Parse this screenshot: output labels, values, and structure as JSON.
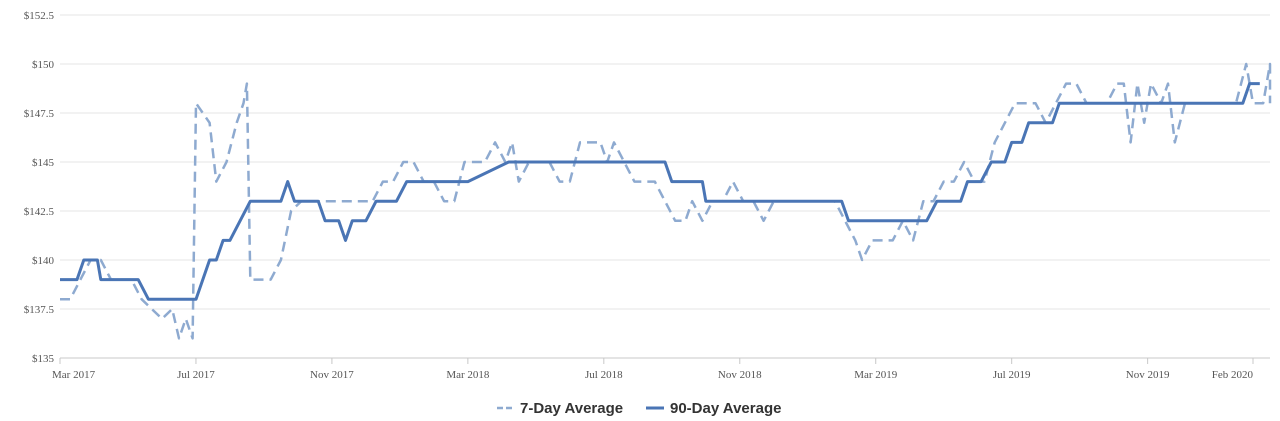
{
  "chart_data": {
    "type": "line",
    "title": "",
    "xlabel": "",
    "ylabel": "",
    "ylim": [
      135,
      152.5
    ],
    "y_ticks": [
      135,
      137.5,
      140,
      142.5,
      145,
      147.5,
      150,
      152.5
    ],
    "y_tick_labels": [
      "$135",
      "$137.5",
      "$140",
      "$142.5",
      "$145",
      "$147.5",
      "$150",
      "$152.5"
    ],
    "x_range": [
      0,
      35.6
    ],
    "x_unit": "months since Mar 2017",
    "x_ticks": [
      {
        "label": "Mar 2017",
        "x": 0
      },
      {
        "label": "Jul 2017",
        "x": 4
      },
      {
        "label": "Nov 2017",
        "x": 8
      },
      {
        "label": "Mar 2018",
        "x": 12
      },
      {
        "label": "Jul 2018",
        "x": 16
      },
      {
        "label": "Nov 2018",
        "x": 20
      },
      {
        "label": "Mar 2019",
        "x": 24
      },
      {
        "label": "Jul 2019",
        "x": 28
      },
      {
        "label": "Nov 2019",
        "x": 32
      },
      {
        "label": "Feb 2020",
        "x": 35.1
      }
    ],
    "legend_position": "bottom-center",
    "series": [
      {
        "name": "7-Day Average",
        "key": "seven_day",
        "color": "#8eaad0",
        "dash": "dashed",
        "points": [
          [
            0,
            138
          ],
          [
            0.3,
            138
          ],
          [
            0.6,
            139
          ],
          [
            0.9,
            140
          ],
          [
            1.2,
            140
          ],
          [
            1.5,
            139
          ],
          [
            1.8,
            139
          ],
          [
            2.1,
            139
          ],
          [
            2.4,
            138
          ],
          [
            2.7,
            137.5
          ],
          [
            3,
            137
          ],
          [
            3.3,
            137.5
          ],
          [
            3.5,
            136
          ],
          [
            3.7,
            137
          ],
          [
            3.9,
            136
          ],
          [
            4.0,
            148
          ],
          [
            4.2,
            147.5
          ],
          [
            4.4,
            147
          ],
          [
            4.6,
            144
          ],
          [
            4.9,
            145
          ],
          [
            5.2,
            147
          ],
          [
            5.4,
            148
          ],
          [
            5.5,
            149
          ],
          [
            5.6,
            139
          ],
          [
            5.9,
            139
          ],
          [
            6.2,
            139
          ],
          [
            6.5,
            140
          ],
          [
            6.8,
            142.5
          ],
          [
            7.1,
            143
          ],
          [
            7.4,
            143
          ],
          [
            7.7,
            143
          ],
          [
            8,
            143
          ],
          [
            8.3,
            143
          ],
          [
            8.6,
            143
          ],
          [
            8.9,
            143
          ],
          [
            9.2,
            143
          ],
          [
            9.5,
            144
          ],
          [
            9.8,
            144
          ],
          [
            10.1,
            145
          ],
          [
            10.4,
            145
          ],
          [
            10.7,
            144
          ],
          [
            11,
            144
          ],
          [
            11.3,
            143
          ],
          [
            11.6,
            143
          ],
          [
            11.9,
            145
          ],
          [
            12.2,
            145
          ],
          [
            12.5,
            145
          ],
          [
            12.8,
            146
          ],
          [
            13.1,
            145
          ],
          [
            13.3,
            146
          ],
          [
            13.5,
            144
          ],
          [
            13.8,
            145
          ],
          [
            14.1,
            145
          ],
          [
            14.4,
            145
          ],
          [
            14.7,
            144
          ],
          [
            15,
            144
          ],
          [
            15.3,
            146
          ],
          [
            15.6,
            146
          ],
          [
            15.9,
            146
          ],
          [
            16.1,
            145
          ],
          [
            16.3,
            146
          ],
          [
            16.6,
            145
          ],
          [
            16.9,
            144
          ],
          [
            17.2,
            144
          ],
          [
            17.5,
            144
          ],
          [
            17.8,
            143
          ],
          [
            18.1,
            142
          ],
          [
            18.4,
            142
          ],
          [
            18.6,
            143
          ],
          [
            18.9,
            142
          ],
          [
            19.2,
            143
          ],
          [
            19.5,
            143
          ],
          [
            19.8,
            144
          ],
          [
            20.1,
            143
          ],
          [
            20.4,
            143
          ],
          [
            20.7,
            142
          ],
          [
            21,
            143
          ],
          [
            21.3,
            143
          ],
          [
            21.6,
            143
          ],
          [
            21.9,
            143
          ],
          [
            22.2,
            143
          ],
          [
            22.5,
            143
          ],
          [
            22.8,
            143
          ],
          [
            23.1,
            142
          ],
          [
            23.4,
            141
          ],
          [
            23.6,
            140
          ],
          [
            23.9,
            141
          ],
          [
            24.2,
            141
          ],
          [
            24.5,
            141
          ],
          [
            24.8,
            142
          ],
          [
            25.1,
            141
          ],
          [
            25.4,
            143
          ],
          [
            25.7,
            143
          ],
          [
            26,
            144
          ],
          [
            26.3,
            144
          ],
          [
            26.6,
            145
          ],
          [
            26.9,
            144
          ],
          [
            27.2,
            144
          ],
          [
            27.5,
            146
          ],
          [
            27.8,
            147
          ],
          [
            28.1,
            148
          ],
          [
            28.4,
            148
          ],
          [
            28.7,
            148
          ],
          [
            29,
            147
          ],
          [
            29.3,
            148
          ],
          [
            29.6,
            149
          ],
          [
            29.9,
            149
          ],
          [
            30.2,
            148
          ],
          [
            30.5,
            148
          ],
          [
            30.8,
            148
          ],
          [
            31.1,
            149
          ],
          [
            31.3,
            149
          ],
          [
            31.5,
            146
          ],
          [
            31.7,
            149
          ],
          [
            31.9,
            147
          ],
          [
            32.1,
            149
          ],
          [
            32.4,
            148
          ],
          [
            32.6,
            149
          ],
          [
            32.8,
            146
          ],
          [
            33.1,
            148
          ],
          [
            33.4,
            148
          ],
          [
            33.7,
            148
          ],
          [
            34,
            148
          ],
          [
            34.3,
            148
          ],
          [
            34.6,
            148
          ],
          [
            34.9,
            150
          ],
          [
            35.1,
            148
          ],
          [
            35.4,
            148
          ],
          [
            35.7,
            150
          ],
          [
            35.9,
            149
          ],
          [
            36.1,
            148
          ],
          [
            36.4,
            148
          ]
        ]
      },
      {
        "name": "90-Day Average",
        "key": "ninety_day",
        "color": "#4a75b5",
        "dash": "solid",
        "points": [
          [
            0,
            139
          ],
          [
            0.5,
            139
          ],
          [
            0.7,
            140
          ],
          [
            1.1,
            140
          ],
          [
            1.2,
            139
          ],
          [
            2.3,
            139
          ],
          [
            2.6,
            138
          ],
          [
            3.9,
            138
          ],
          [
            4.0,
            138
          ],
          [
            4.4,
            140
          ],
          [
            4.6,
            140
          ],
          [
            4.8,
            141
          ],
          [
            5.0,
            141
          ],
          [
            5.6,
            143
          ],
          [
            6.5,
            143
          ],
          [
            6.7,
            144
          ],
          [
            6.9,
            143
          ],
          [
            7.6,
            143
          ],
          [
            7.8,
            142
          ],
          [
            8.2,
            142
          ],
          [
            8.4,
            141
          ],
          [
            8.6,
            142
          ],
          [
            9.0,
            142
          ],
          [
            9.3,
            143
          ],
          [
            9.9,
            143
          ],
          [
            10.2,
            144
          ],
          [
            12.0,
            144
          ],
          [
            13.2,
            145
          ],
          [
            17.8,
            145
          ],
          [
            18.0,
            144
          ],
          [
            18.9,
            144
          ],
          [
            19.0,
            143
          ],
          [
            23.0,
            143
          ],
          [
            23.2,
            142
          ],
          [
            25.5,
            142
          ],
          [
            25.8,
            143
          ],
          [
            26.5,
            143
          ],
          [
            26.7,
            144
          ],
          [
            27.1,
            144
          ],
          [
            27.4,
            145
          ],
          [
            27.8,
            145
          ],
          [
            28.0,
            146
          ],
          [
            28.3,
            146
          ],
          [
            28.5,
            147
          ],
          [
            29.2,
            147
          ],
          [
            29.4,
            148
          ],
          [
            34.8,
            148
          ],
          [
            35.0,
            149
          ],
          [
            35.3,
            149
          ]
        ]
      }
    ]
  }
}
